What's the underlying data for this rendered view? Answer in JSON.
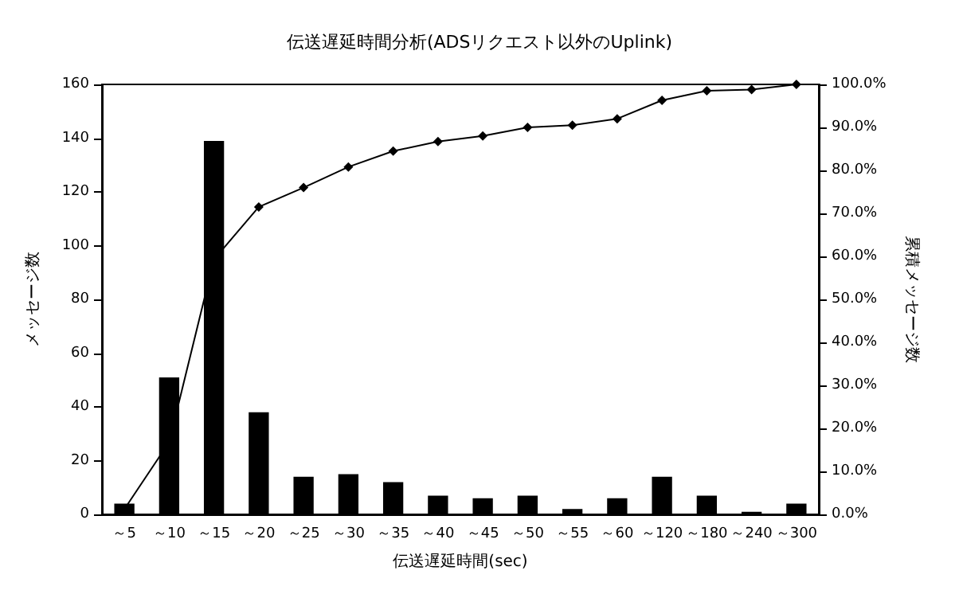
{
  "chart_data": {
    "type": "bar",
    "title": "伝送遅延時間分析(ADSリクエスト以外のUplink)",
    "xlabel": "伝送遅延時間(sec)",
    "ylabel": "メッセージ数",
    "y2label": "累積メッセージ数",
    "categories": [
      "～5",
      "～10",
      "～15",
      "～20",
      "～25",
      "～30",
      "～35",
      "～40",
      "～45",
      "～50",
      "～55",
      "～60",
      "～120",
      "～180",
      "～240",
      "～300"
    ],
    "series": [
      {
        "color": "#000000",
        "values": [
          4,
          51,
          139,
          38,
          14,
          15,
          12,
          7,
          6,
          7,
          2,
          6,
          14,
          7,
          1,
          4
        ]
      },
      {
        "type": "line",
        "axis": "y2",
        "color": "#000000",
        "marker": "diamond",
        "line_style": "solid",
        "values": [
          1.2,
          16.8,
          59.3,
          71.5,
          76,
          80.8,
          84.5,
          86.7,
          88,
          90,
          90.5,
          92,
          96.3,
          98.5,
          98.8,
          100
        ]
      }
    ],
    "ylim": [
      0,
      160
    ],
    "yticks": [
      0,
      20,
      40,
      60,
      80,
      100,
      120,
      140,
      160
    ],
    "y2lim": [
      0,
      100
    ],
    "y2ticks": [
      {
        "value": 0,
        "label": "0.0%"
      },
      {
        "value": 10,
        "label": "10.0%"
      },
      {
        "value": 20,
        "label": "20.0%"
      },
      {
        "value": 30,
        "label": "30.0%"
      },
      {
        "value": 40,
        "label": "40.0%"
      },
      {
        "value": 50,
        "label": "50.0%"
      },
      {
        "value": 60,
        "label": "60.0%"
      },
      {
        "value": 70,
        "label": "70.0%"
      },
      {
        "value": 80,
        "label": "80.0%"
      },
      {
        "value": 90,
        "label": "90.0%"
      },
      {
        "value": 100,
        "label": "100.0%"
      }
    ],
    "grid": false
  }
}
